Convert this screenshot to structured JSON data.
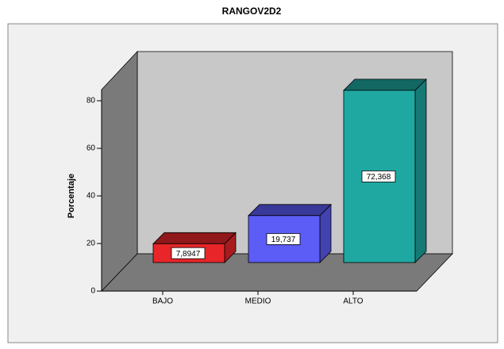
{
  "chart_data": {
    "type": "bar",
    "title": "RANGOV2D2",
    "y_label": "Porcentaje",
    "categories": [
      "BAJO",
      "MEDIO",
      "ALTO"
    ],
    "values": [
      7.8947,
      19.737,
      72.368
    ],
    "value_labels": [
      "7,8947",
      "19,737",
      "72,368"
    ],
    "colors": [
      "#e8262a",
      "#5c5cf6",
      "#1fa8a2"
    ],
    "ylim": [
      0,
      85
    ],
    "yticks": [
      0,
      20,
      40,
      60,
      80
    ]
  }
}
